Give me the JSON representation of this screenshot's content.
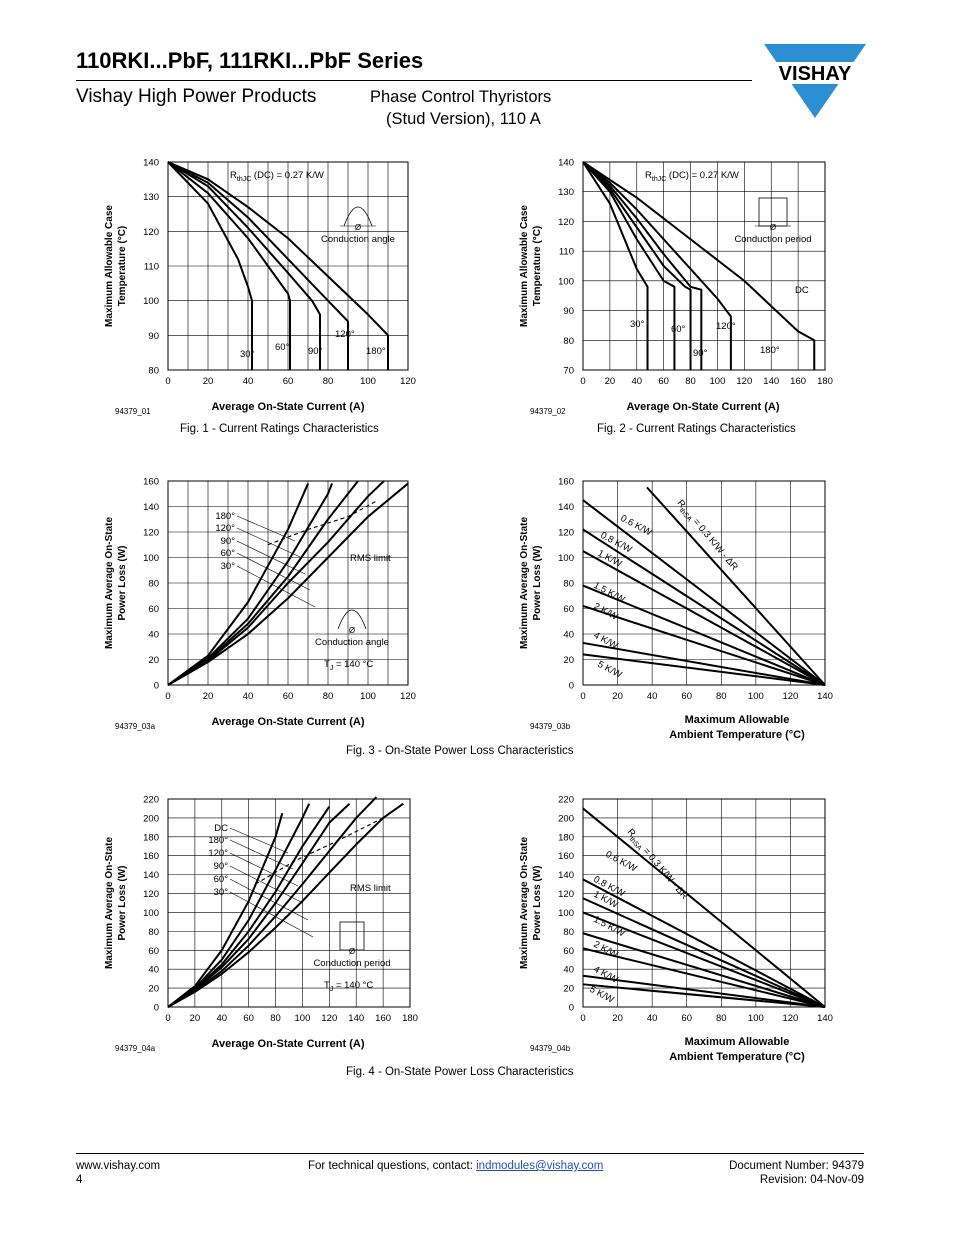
{
  "header": {
    "title": "110RKI...PbF, 111RKI...PbF Series",
    "subtitle": "Vishay High Power Products",
    "product_line1": "Phase Control Thyristors",
    "product_line2": "(Stud Version), 110 A",
    "logo_text": "VISHAY"
  },
  "captions": {
    "fig1": "Fig. 1 - Current Ratings Characteristics",
    "fig2": "Fig. 2 - Current Ratings Characteristics",
    "fig3": "Fig. 3 - On-State Power Loss Characteristics",
    "fig4": "Fig. 4 - On-State Power Loss Characteristics"
  },
  "footer": {
    "website": "www.vishay.com",
    "page": "4",
    "contact_prefix": "For technical questions, contact: ",
    "contact_email": "indmodules@vishay.com",
    "doc_number": "Document Number: 94379",
    "revision": "Revision: 04-Nov-09"
  },
  "chart_data": [
    {
      "id": "c1",
      "code": "94379_01",
      "type": "line",
      "xlabel": "Average On-State Current (A)",
      "ylabel": [
        "Maximum Allowable Case",
        "Temperature (°C)"
      ],
      "xlim": [
        0,
        120
      ],
      "ylim": [
        80,
        140
      ],
      "xticks": [
        0,
        20,
        40,
        60,
        80,
        100,
        120
      ],
      "yticks": [
        80,
        90,
        100,
        110,
        120,
        130,
        140
      ],
      "annotations": [
        "R",
        "thJC",
        " (DC) = 0.27 K/W",
        "Ø",
        "Conduction angle"
      ],
      "series": [
        {
          "name": "30°",
          "x": [
            0,
            20,
            35,
            40,
            42,
            42
          ],
          "y": [
            140,
            128,
            112,
            104,
            100,
            80
          ]
        },
        {
          "name": "60°",
          "x": [
            0,
            20,
            40,
            55,
            60,
            61,
            61
          ],
          "y": [
            140,
            131,
            118,
            106,
            102,
            100,
            80
          ]
        },
        {
          "name": "90°",
          "x": [
            0,
            20,
            40,
            60,
            72,
            76,
            76
          ],
          "y": [
            140,
            133,
            121,
            108,
            100,
            96,
            80
          ]
        },
        {
          "name": "120°",
          "x": [
            0,
            20,
            40,
            60,
            80,
            90,
            90
          ],
          "y": [
            140,
            134,
            124,
            112,
            100,
            94,
            80
          ]
        },
        {
          "name": "180°",
          "x": [
            0,
            20,
            40,
            60,
            80,
            100,
            110,
            110
          ],
          "y": [
            140,
            135,
            127,
            118,
            107,
            96,
            90,
            80
          ]
        }
      ],
      "series_labels": [
        "30°",
        "60°",
        "90°",
        "120°",
        "180°"
      ]
    },
    {
      "id": "c2",
      "code": "94379_02",
      "type": "line",
      "xlabel": "Average On-State Current (A)",
      "ylabel": [
        "Maximum Allowable Case",
        "Temperature (°C)"
      ],
      "xlim": [
        0,
        180
      ],
      "ylim": [
        70,
        140
      ],
      "xticks": [
        0,
        20,
        40,
        60,
        80,
        100,
        120,
        140,
        160,
        180
      ],
      "yticks": [
        70,
        80,
        90,
        100,
        110,
        120,
        130,
        140
      ],
      "annotations": [
        "R",
        "thJC",
        " (DC) = 0.27 K/W",
        "Ø",
        "Conduction period"
      ],
      "series": [
        {
          "name": "30°",
          "x": [
            0,
            20,
            40,
            48,
            48
          ],
          "y": [
            140,
            126,
            104,
            98,
            70
          ]
        },
        {
          "name": "60°",
          "x": [
            0,
            20,
            40,
            60,
            68,
            68
          ],
          "y": [
            140,
            130,
            114,
            100,
            98,
            70
          ]
        },
        {
          "name": "90°",
          "x": [
            0,
            20,
            40,
            60,
            76,
            80,
            80
          ],
          "y": [
            140,
            131,
            118,
            105,
            98,
            97,
            70
          ]
        },
        {
          "name": "120°",
          "x": [
            0,
            20,
            40,
            60,
            80,
            88,
            88
          ],
          "y": [
            140,
            132,
            121,
            109,
            98,
            97,
            70
          ]
        },
        {
          "name": "180°",
          "x": [
            0,
            20,
            40,
            60,
            80,
            100,
            110,
            110
          ],
          "y": [
            140,
            133,
            124,
            114,
            104,
            94,
            88,
            70
          ]
        },
        {
          "name": "DC",
          "x": [
            0,
            40,
            80,
            120,
            160,
            172,
            172
          ],
          "y": [
            140,
            128,
            114,
            100,
            83,
            80,
            70
          ]
        }
      ],
      "series_labels": [
        "30°",
        "60°",
        "90°",
        "120°",
        "180°",
        "DC"
      ]
    },
    {
      "id": "c3a",
      "code": "94379_03a",
      "type": "line",
      "xlabel": "Average On-State Current (A)",
      "ylabel": [
        "Maximum Average On-State",
        "Power Loss (W)"
      ],
      "xlim": [
        0,
        120
      ],
      "ylim": [
        0,
        160
      ],
      "xticks": [
        0,
        20,
        40,
        60,
        80,
        100,
        120
      ],
      "yticks": [
        0,
        20,
        40,
        60,
        80,
        100,
        120,
        140,
        160
      ],
      "annotations": [
        "RMS limit",
        "Ø",
        "Conduction angle",
        "T",
        "J",
        " = 140 °C"
      ],
      "series": [
        {
          "name": "30°",
          "x": [
            0,
            20,
            40,
            60,
            70
          ],
          "y": [
            0,
            23,
            65,
            122,
            158
          ]
        },
        {
          "name": "60°",
          "x": [
            0,
            20,
            40,
            60,
            80,
            82
          ],
          "y": [
            0,
            21,
            52,
            97,
            150,
            158
          ]
        },
        {
          "name": "90°",
          "x": [
            0,
            20,
            40,
            60,
            80,
            95
          ],
          "y": [
            0,
            20,
            48,
            85,
            130,
            160
          ]
        },
        {
          "name": "120°",
          "x": [
            0,
            20,
            40,
            60,
            80,
            100,
            108
          ],
          "y": [
            0,
            19,
            45,
            80,
            112,
            148,
            160
          ]
        },
        {
          "name": "180°",
          "x": [
            0,
            20,
            40,
            60,
            80,
            100,
            120
          ],
          "y": [
            0,
            18,
            40,
            68,
            100,
            132,
            158
          ]
        },
        {
          "name": "RMS limit",
          "x": [
            50,
            70,
            90,
            105
          ],
          "y": [
            110,
            122,
            132,
            145
          ],
          "dashed": true
        }
      ],
      "series_labels": [
        "180°",
        "120°",
        "90°",
        "60°",
        "30°"
      ]
    },
    {
      "id": "c3b",
      "code": "94379_03b",
      "type": "line",
      "xlabel": [
        "Maximum Allowable",
        "Ambient Temperature (°C)"
      ],
      "ylabel": [
        "Maximum Average On-State",
        "Power Loss (W)"
      ],
      "xlim": [
        0,
        140
      ],
      "ylim": [
        0,
        160
      ],
      "xticks": [
        0,
        20,
        40,
        60,
        80,
        100,
        120,
        140
      ],
      "yticks": [
        0,
        20,
        40,
        60,
        80,
        100,
        120,
        140,
        160
      ],
      "annotations": [
        "R",
        "thSA",
        " = 0.3 K/W - ΔR"
      ],
      "series": [
        {
          "name": "0.3 K/W",
          "x": [
            37,
            140
          ],
          "y": [
            155,
            0
          ]
        },
        {
          "name": "0.6 K/W",
          "x": [
            0,
            140
          ],
          "y": [
            145,
            0
          ]
        },
        {
          "name": "0.8 K/W",
          "x": [
            0,
            140
          ],
          "y": [
            122,
            0
          ]
        },
        {
          "name": "1 K/W",
          "x": [
            0,
            140
          ],
          "y": [
            105,
            0
          ]
        },
        {
          "name": "1.5 K/W",
          "x": [
            0,
            140
          ],
          "y": [
            78,
            0
          ]
        },
        {
          "name": "2 K/W",
          "x": [
            0,
            140
          ],
          "y": [
            62,
            0
          ]
        },
        {
          "name": "4 K/W",
          "x": [
            0,
            140
          ],
          "y": [
            33,
            0
          ]
        },
        {
          "name": "5 K/W",
          "x": [
            0,
            140
          ],
          "y": [
            24,
            0
          ]
        }
      ],
      "series_labels": [
        "0.6 K/W",
        "0.8 K/W",
        "1 K/W",
        "1.5 K/W",
        "2 K/W",
        "4 K/W",
        "5 K/W"
      ]
    },
    {
      "id": "c4a",
      "code": "94379_04a",
      "type": "line",
      "xlabel": "Average On-State Current (A)",
      "ylabel": [
        "Maximum Average On-State",
        "Power Loss (W)"
      ],
      "xlim": [
        0,
        180
      ],
      "ylim": [
        0,
        220
      ],
      "xticks": [
        0,
        20,
        40,
        60,
        80,
        100,
        120,
        140,
        160,
        180
      ],
      "yticks": [
        0,
        20,
        40,
        60,
        80,
        100,
        120,
        140,
        160,
        180,
        200,
        220
      ],
      "annotations": [
        "RMS limit",
        "Ø",
        "Conduction period",
        "T",
        "J",
        " = 140 °C"
      ],
      "series": [
        {
          "name": "30°",
          "x": [
            0,
            20,
            40,
            60,
            80,
            85
          ],
          "y": [
            0,
            22,
            60,
            112,
            180,
            205
          ]
        },
        {
          "name": "60°",
          "x": [
            0,
            20,
            40,
            60,
            80,
            100,
            105
          ],
          "y": [
            0,
            20,
            50,
            92,
            145,
            200,
            215
          ]
        },
        {
          "name": "90°",
          "x": [
            0,
            20,
            40,
            60,
            80,
            100,
            120
          ],
          "y": [
            0,
            19,
            45,
            80,
            122,
            170,
            212
          ]
        },
        {
          "name": "120°",
          "x": [
            0,
            20,
            40,
            60,
            80,
            100,
            120,
            135
          ],
          "y": [
            0,
            18,
            42,
            72,
            110,
            152,
            195,
            215
          ]
        },
        {
          "name": "180°",
          "x": [
            0,
            20,
            40,
            60,
            80,
            100,
            120,
            140,
            155
          ],
          "y": [
            0,
            17,
            38,
            65,
            96,
            130,
            165,
            200,
            222
          ]
        },
        {
          "name": "DC",
          "x": [
            0,
            20,
            40,
            60,
            80,
            100,
            120,
            140,
            160,
            175
          ],
          "y": [
            0,
            16,
            35,
            58,
            84,
            112,
            142,
            172,
            200,
            215
          ]
        },
        {
          "name": "RMS limit",
          "x": [
            65,
            95,
            125,
            160
          ],
          "y": [
            130,
            155,
            175,
            200
          ],
          "dashed": true
        }
      ],
      "series_labels": [
        "DC",
        "180°",
        "120°",
        "90°",
        "60°",
        "30°"
      ]
    },
    {
      "id": "c4b",
      "code": "94379_04b",
      "type": "line",
      "xlabel": [
        "Maximum Allowable",
        "Ambient Temperature (°C)"
      ],
      "ylabel": [
        "Maximum Average On-State",
        "Power Loss (W)"
      ],
      "xlim": [
        0,
        140
      ],
      "ylim": [
        0,
        220
      ],
      "xticks": [
        0,
        20,
        40,
        60,
        80,
        100,
        120,
        140
      ],
      "yticks": [
        0,
        20,
        40,
        60,
        80,
        100,
        120,
        140,
        160,
        180,
        200,
        220
      ],
      "annotations": [
        "R",
        "thSA",
        " = 0.3 K/W - ΔR"
      ],
      "series": [
        {
          "name": "0.3 K/W",
          "x": [
            0,
            140
          ],
          "y": [
            210,
            0
          ]
        },
        {
          "name": "0.6 K/W",
          "x": [
            0,
            140
          ],
          "y": [
            135,
            0
          ]
        },
        {
          "name": "0.8 K/W",
          "x": [
            0,
            140
          ],
          "y": [
            115,
            0
          ]
        },
        {
          "name": "1 K/W",
          "x": [
            0,
            140
          ],
          "y": [
            100,
            0
          ]
        },
        {
          "name": "1.5 K/W",
          "x": [
            0,
            140
          ],
          "y": [
            78,
            0
          ]
        },
        {
          "name": "2 K/W",
          "x": [
            0,
            140
          ],
          "y": [
            62,
            0
          ]
        },
        {
          "name": "4 K/W",
          "x": [
            0,
            140
          ],
          "y": [
            33,
            0
          ]
        },
        {
          "name": "5 K/W",
          "x": [
            0,
            140
          ],
          "y": [
            24,
            0
          ]
        }
      ],
      "series_labels": [
        "0.6 K/W",
        "0.8 K/W",
        "1 K/W",
        "1.5 K/W",
        "2 K/W",
        "4 K/W",
        "5 K/W"
      ]
    }
  ]
}
